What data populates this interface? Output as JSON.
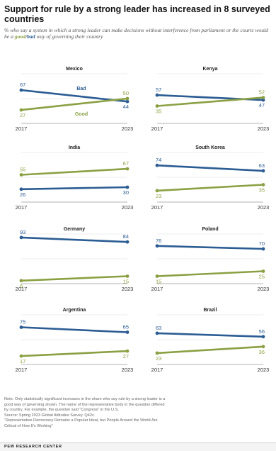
{
  "header": {
    "title": "Support for rule by a strong leader has increased in 8 surveyed countries",
    "subtitle_pre": "% who say a system in which a strong leader can make decisions without interference from parliament or the courts would be a",
    "subtitle_good": "good",
    "subtitle_sep": "/",
    "subtitle_bad": "bad",
    "subtitle_post": "way of governing their country"
  },
  "colors": {
    "bad": "#2b5c93",
    "good": "#8ba043",
    "grid": "#d9d9d9"
  },
  "chart_data": [
    {
      "type": "line",
      "title": "Mexico",
      "x": [
        "2017",
        "2023"
      ],
      "series": [
        {
          "name": "Bad",
          "values": [
            67,
            44
          ]
        },
        {
          "name": "Good",
          "values": [
            27,
            50
          ]
        }
      ]
    },
    {
      "type": "line",
      "title": "Kenya",
      "x": [
        "2017",
        "2023"
      ],
      "series": [
        {
          "values": [
            57,
            47
          ]
        },
        {
          "values": [
            35,
            52
          ]
        }
      ]
    },
    {
      "type": "line",
      "title": "India",
      "x": [
        "2017",
        "2023"
      ],
      "series": [
        {
          "values": [
            26,
            30
          ]
        },
        {
          "values": [
            55,
            67
          ]
        }
      ]
    },
    {
      "type": "line",
      "title": "South Korea",
      "x": [
        "2017",
        "2023"
      ],
      "series": [
        {
          "values": [
            74,
            63
          ]
        },
        {
          "values": [
            23,
            35
          ]
        }
      ]
    },
    {
      "type": "line",
      "title": "Germany",
      "x": [
        "2017",
        "2023"
      ],
      "series": [
        {
          "values": [
            93,
            84
          ]
        },
        {
          "values": [
            6,
            15
          ]
        }
      ]
    },
    {
      "type": "line",
      "title": "Poland",
      "x": [
        "2017",
        "2023"
      ],
      "series": [
        {
          "values": [
            76,
            70
          ]
        },
        {
          "values": [
            15,
            25
          ]
        }
      ]
    },
    {
      "type": "line",
      "title": "Argentina",
      "x": [
        "2017",
        "2023"
      ],
      "series": [
        {
          "values": [
            75,
            65
          ]
        },
        {
          "values": [
            17,
            27
          ]
        }
      ]
    },
    {
      "type": "line",
      "title": "Brazil",
      "x": [
        "2017",
        "2023"
      ],
      "series": [
        {
          "values": [
            63,
            56
          ]
        },
        {
          "values": [
            23,
            36
          ]
        }
      ]
    }
  ],
  "notes": [
    "Note: Only statistically significant increases in the share who say rule by a strong leader is a",
    "good way of governing shown. The name of the representative body in the question differed",
    "by country. For example, the question said “Congress” in the U.S.",
    "Source: Spring 2023 Global Attitudes Survey. Q42c.",
    "“Representative Democracy Remains a Popular Ideal, but People Around the World Are",
    "Critical of How It’s Working”"
  ],
  "footer": {
    "logo": "PEW RESEARCH CENTER"
  }
}
